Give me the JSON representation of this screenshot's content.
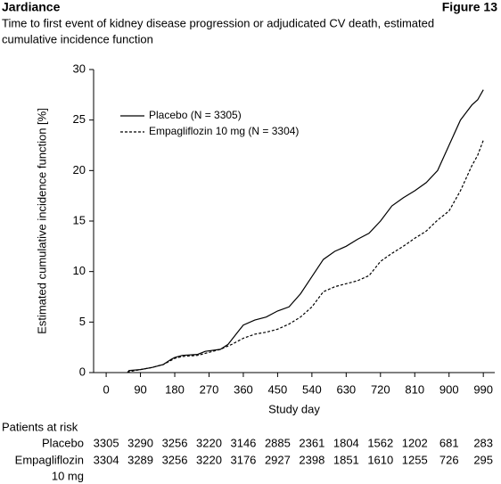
{
  "header": {
    "title": "Jardiance",
    "figure": "Figure 13"
  },
  "chart_data": {
    "type": "line",
    "subtitle": [
      "Time to first event of kidney disease progression or adjudicated CV death, estimated",
      "cumulative incidence function"
    ],
    "xlabel": "Study day",
    "ylabel": "Estimated cumulative incidence function [%]",
    "xlim": [
      -33,
      1020
    ],
    "ylim": [
      0,
      30
    ],
    "xticks": [
      0,
      90,
      180,
      270,
      360,
      450,
      540,
      630,
      720,
      810,
      900,
      990
    ],
    "yticks": [
      0,
      5,
      10,
      15,
      20,
      25,
      30
    ],
    "legend": "upper left",
    "series": [
      {
        "name": "Placebo (N = 3305)",
        "color": "#000000",
        "line_style": "solid",
        "x": [
          56,
          60,
          90,
          120,
          150,
          170,
          180,
          200,
          240,
          260,
          300,
          320,
          345,
          360,
          390,
          420,
          450,
          480,
          510,
          540,
          570,
          600,
          630,
          660,
          690,
          720,
          750,
          780,
          810,
          840,
          870,
          900,
          930,
          960,
          975,
          990
        ],
        "values": [
          0,
          0.2,
          0.3,
          0.5,
          0.8,
          1.3,
          1.5,
          1.7,
          1.8,
          2.1,
          2.3,
          2.8,
          4.0,
          4.7,
          5.2,
          5.5,
          6.1,
          6.5,
          7.8,
          9.5,
          11.2,
          12.0,
          12.5,
          13.2,
          13.8,
          15.0,
          16.5,
          17.3,
          18.0,
          18.8,
          20.0,
          22.5,
          25.0,
          26.5,
          27.0,
          28.0
        ]
      },
      {
        "name": "Empagliflozin 10 mg (N = 3304)",
        "color": "#000000",
        "line_style": "dashed",
        "x": [
          56,
          60,
          90,
          120,
          150,
          180,
          200,
          240,
          270,
          300,
          330,
          360,
          390,
          420,
          450,
          480,
          510,
          540,
          570,
          600,
          630,
          660,
          690,
          720,
          750,
          780,
          810,
          840,
          870,
          900,
          930,
          960,
          975,
          990
        ],
        "values": [
          0,
          0.1,
          0.3,
          0.5,
          0.8,
          1.4,
          1.6,
          1.7,
          2.0,
          2.3,
          2.8,
          3.4,
          3.8,
          4.0,
          4.3,
          4.8,
          5.5,
          6.5,
          8.0,
          8.5,
          8.8,
          9.1,
          9.6,
          11.0,
          11.8,
          12.5,
          13.3,
          14.0,
          15.1,
          16.0,
          18.0,
          20.5,
          21.5,
          23.0
        ]
      }
    ],
    "risk_table": {
      "title": "Patients at risk",
      "rows": [
        {
          "label": [
            "Placebo"
          ],
          "values": [
            3305,
            3290,
            3256,
            3220,
            3146,
            2885,
            2361,
            1804,
            1562,
            1202,
            681,
            283
          ]
        },
        {
          "label": [
            "Empagliflozin",
            "10 mg"
          ],
          "values": [
            3304,
            3289,
            3256,
            3220,
            3176,
            2927,
            2398,
            1851,
            1610,
            1255,
            726,
            295
          ]
        }
      ]
    }
  }
}
